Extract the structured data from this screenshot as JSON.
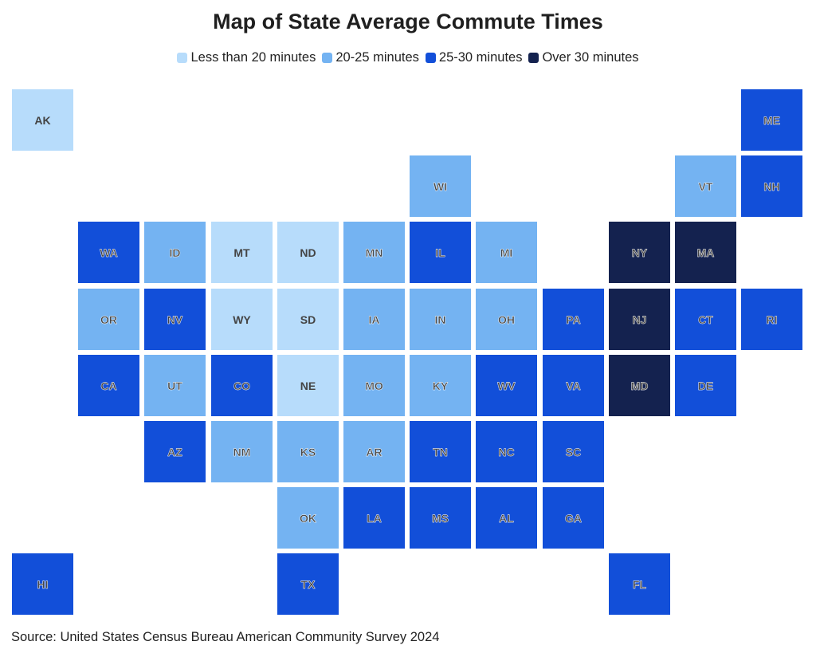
{
  "title": "Map of State Average Commute Times",
  "legend": [
    {
      "label": "Less than 20 minutes",
      "category": "lt20",
      "color": "#b7dcfb"
    },
    {
      "label": "20-25 minutes",
      "category": "20-25",
      "color": "#74b3f2"
    },
    {
      "label": "25-30 minutes",
      "category": "25-30",
      "color": "#124fd9"
    },
    {
      "label": "Over 30 minutes",
      "category": "gt30",
      "color": "#14224f"
    }
  ],
  "states": [
    {
      "abbr": "AK",
      "row": 0,
      "col": 0,
      "category": "lt20"
    },
    {
      "abbr": "ME",
      "row": 0,
      "col": 11,
      "category": "25-30"
    },
    {
      "abbr": "WI",
      "row": 1,
      "col": 6,
      "category": "20-25"
    },
    {
      "abbr": "VT",
      "row": 1,
      "col": 10,
      "category": "20-25"
    },
    {
      "abbr": "NH",
      "row": 1,
      "col": 11,
      "category": "25-30"
    },
    {
      "abbr": "WA",
      "row": 2,
      "col": 1,
      "category": "25-30"
    },
    {
      "abbr": "ID",
      "row": 2,
      "col": 2,
      "category": "20-25"
    },
    {
      "abbr": "MT",
      "row": 2,
      "col": 3,
      "category": "lt20"
    },
    {
      "abbr": "ND",
      "row": 2,
      "col": 4,
      "category": "lt20"
    },
    {
      "abbr": "MN",
      "row": 2,
      "col": 5,
      "category": "20-25"
    },
    {
      "abbr": "IL",
      "row": 2,
      "col": 6,
      "category": "25-30"
    },
    {
      "abbr": "MI",
      "row": 2,
      "col": 7,
      "category": "20-25"
    },
    {
      "abbr": "NY",
      "row": 2,
      "col": 9,
      "category": "gt30"
    },
    {
      "abbr": "MA",
      "row": 2,
      "col": 10,
      "category": "gt30"
    },
    {
      "abbr": "OR",
      "row": 3,
      "col": 1,
      "category": "20-25"
    },
    {
      "abbr": "NV",
      "row": 3,
      "col": 2,
      "category": "25-30"
    },
    {
      "abbr": "WY",
      "row": 3,
      "col": 3,
      "category": "lt20"
    },
    {
      "abbr": "SD",
      "row": 3,
      "col": 4,
      "category": "lt20"
    },
    {
      "abbr": "IA",
      "row": 3,
      "col": 5,
      "category": "20-25"
    },
    {
      "abbr": "IN",
      "row": 3,
      "col": 6,
      "category": "20-25"
    },
    {
      "abbr": "OH",
      "row": 3,
      "col": 7,
      "category": "20-25"
    },
    {
      "abbr": "PA",
      "row": 3,
      "col": 8,
      "category": "25-30"
    },
    {
      "abbr": "NJ",
      "row": 3,
      "col": 9,
      "category": "gt30"
    },
    {
      "abbr": "CT",
      "row": 3,
      "col": 10,
      "category": "25-30"
    },
    {
      "abbr": "RI",
      "row": 3,
      "col": 11,
      "category": "25-30"
    },
    {
      "abbr": "CA",
      "row": 4,
      "col": 1,
      "category": "25-30"
    },
    {
      "abbr": "UT",
      "row": 4,
      "col": 2,
      "category": "20-25"
    },
    {
      "abbr": "CO",
      "row": 4,
      "col": 3,
      "category": "25-30"
    },
    {
      "abbr": "NE",
      "row": 4,
      "col": 4,
      "category": "lt20"
    },
    {
      "abbr": "MO",
      "row": 4,
      "col": 5,
      "category": "20-25"
    },
    {
      "abbr": "KY",
      "row": 4,
      "col": 6,
      "category": "20-25"
    },
    {
      "abbr": "WV",
      "row": 4,
      "col": 7,
      "category": "25-30"
    },
    {
      "abbr": "VA",
      "row": 4,
      "col": 8,
      "category": "25-30"
    },
    {
      "abbr": "MD",
      "row": 4,
      "col": 9,
      "category": "gt30"
    },
    {
      "abbr": "DE",
      "row": 4,
      "col": 10,
      "category": "25-30"
    },
    {
      "abbr": "AZ",
      "row": 5,
      "col": 2,
      "category": "25-30"
    },
    {
      "abbr": "NM",
      "row": 5,
      "col": 3,
      "category": "20-25"
    },
    {
      "abbr": "KS",
      "row": 5,
      "col": 4,
      "category": "20-25"
    },
    {
      "abbr": "AR",
      "row": 5,
      "col": 5,
      "category": "20-25"
    },
    {
      "abbr": "TN",
      "row": 5,
      "col": 6,
      "category": "25-30"
    },
    {
      "abbr": "NC",
      "row": 5,
      "col": 7,
      "category": "25-30"
    },
    {
      "abbr": "SC",
      "row": 5,
      "col": 8,
      "category": "25-30"
    },
    {
      "abbr": "OK",
      "row": 6,
      "col": 4,
      "category": "20-25"
    },
    {
      "abbr": "LA",
      "row": 6,
      "col": 5,
      "category": "25-30"
    },
    {
      "abbr": "MS",
      "row": 6,
      "col": 6,
      "category": "25-30"
    },
    {
      "abbr": "AL",
      "row": 6,
      "col": 7,
      "category": "25-30"
    },
    {
      "abbr": "GA",
      "row": 6,
      "col": 8,
      "category": "25-30"
    },
    {
      "abbr": "HI",
      "row": 7,
      "col": 0,
      "category": "25-30"
    },
    {
      "abbr": "TX",
      "row": 7,
      "col": 4,
      "category": "25-30"
    },
    {
      "abbr": "FL",
      "row": 7,
      "col": 9,
      "category": "25-30"
    }
  ],
  "source": "Source: United States Census Bureau American Community Survey 2024"
}
